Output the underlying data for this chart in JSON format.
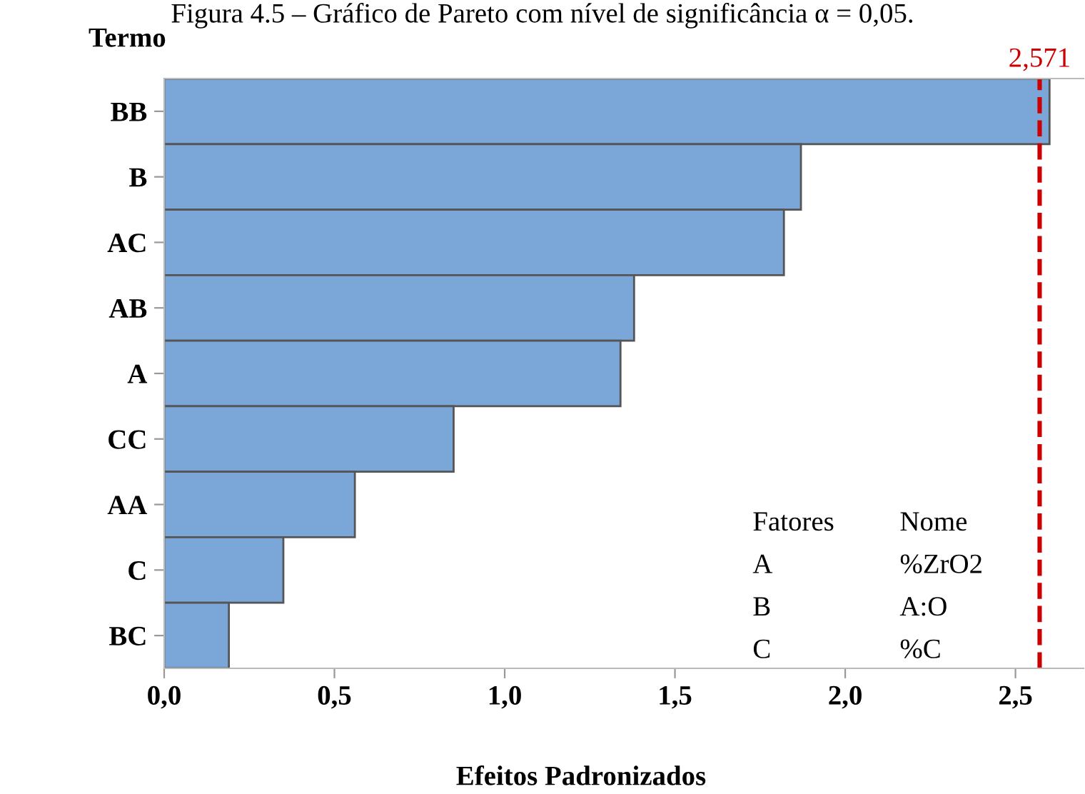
{
  "chart_data": {
    "type": "bar",
    "orientation": "horizontal",
    "title": "Figura 4.5 – Gráfico de Pareto com nível de significância α = 0,05.",
    "ylabel": "Termo",
    "xlabel": "Efeitos Padronizados",
    "categories": [
      "BB",
      "B",
      "AC",
      "AB",
      "A",
      "CC",
      "AA",
      "C",
      "BC"
    ],
    "values": [
      2.6,
      1.87,
      1.82,
      1.38,
      1.34,
      0.85,
      0.56,
      0.35,
      0.19
    ],
    "color": "#7ba7d8",
    "xlim": [
      0,
      2.7
    ],
    "xticks": [
      {
        "value": 0,
        "label": "0,0"
      },
      {
        "value": 0.5,
        "label": "0,5"
      },
      {
        "value": 1,
        "label": "1,0"
      },
      {
        "value": 1.5,
        "label": "1,5"
      },
      {
        "value": 2,
        "label": "2,0"
      },
      {
        "value": 2.5,
        "label": "2,5"
      }
    ],
    "ref_lines": [
      {
        "axis": "x",
        "value": 2.571,
        "label": "2,571",
        "color": "#cc0000",
        "line_style": "dashed"
      }
    ],
    "annotations": [
      "Fatores",
      "Nome",
      "A",
      "%ZrO2",
      "B",
      "A:O",
      "C",
      "%C"
    ],
    "grid": false,
    "legend": false
  }
}
